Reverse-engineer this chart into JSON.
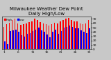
{
  "title": "Milwaukee Weather Dew Point",
  "subtitle": "Daily High/Low",
  "high_color": "#ff0000",
  "low_color": "#0000ff",
  "background_color": "#c8c8c8",
  "plot_bg_color": "#c8c8c8",
  "ylim": [
    0,
    75
  ],
  "yticks": [
    0,
    10,
    20,
    30,
    40,
    50,
    60,
    70
  ],
  "title_fontsize": 5.0,
  "tick_fontsize": 3.2,
  "highs": [
    52,
    58,
    62,
    68,
    70,
    60,
    56,
    58,
    60,
    63,
    65,
    70,
    68,
    63,
    60,
    58,
    55,
    58,
    62,
    60,
    65,
    68,
    70,
    72,
    68,
    65,
    65,
    60,
    58,
    60,
    68
  ],
  "lows": [
    18,
    12,
    42,
    44,
    46,
    40,
    32,
    30,
    36,
    38,
    42,
    46,
    50,
    44,
    40,
    34,
    28,
    40,
    46,
    36,
    42,
    50,
    52,
    55,
    52,
    48,
    48,
    44,
    40,
    38,
    48
  ]
}
